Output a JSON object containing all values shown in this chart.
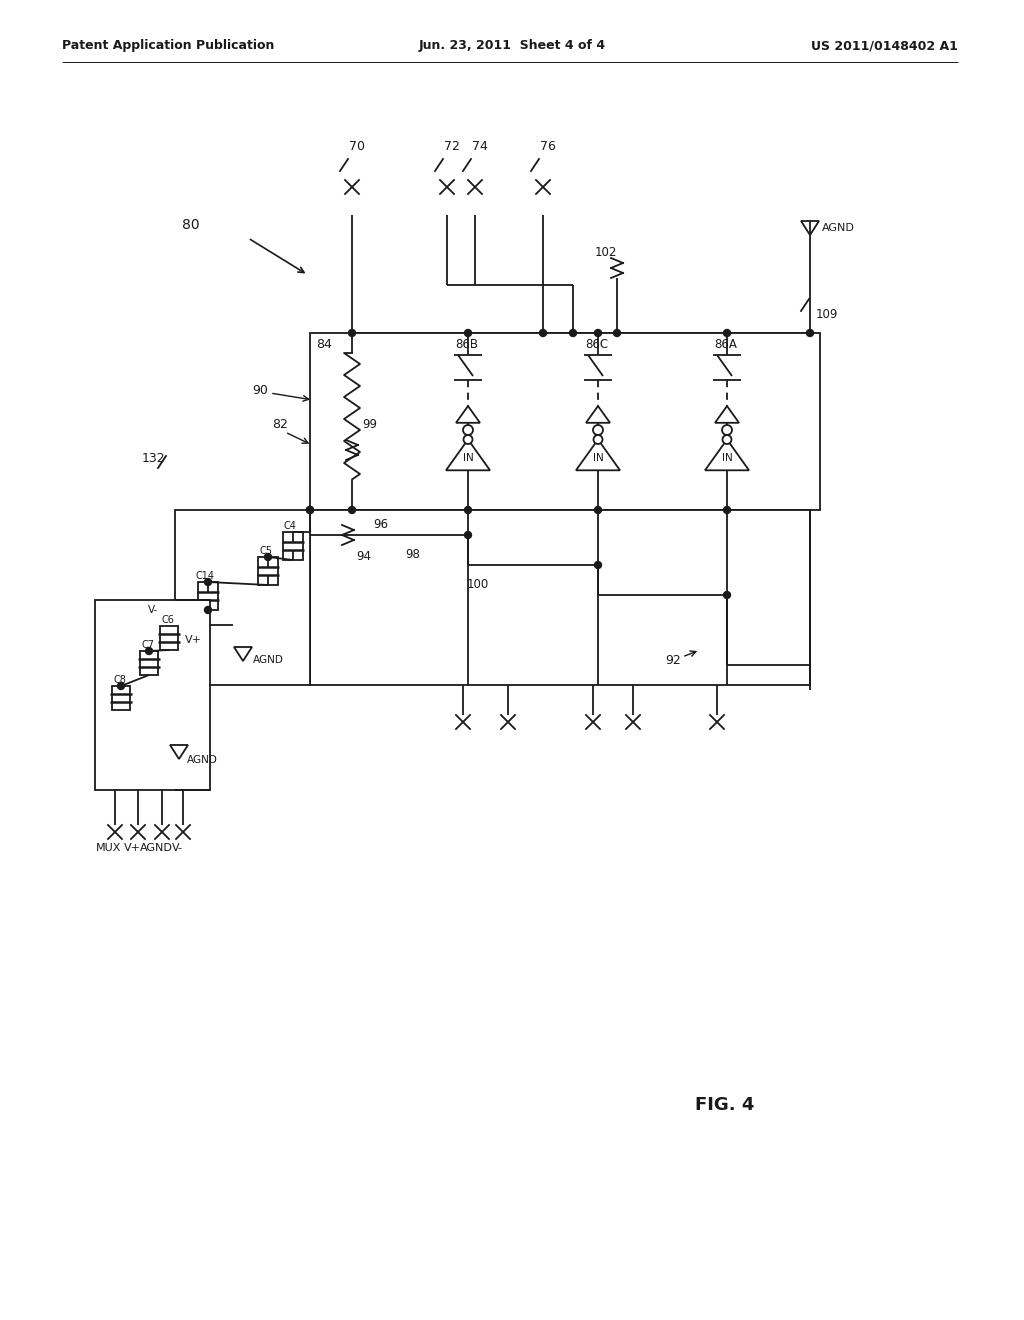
{
  "bg_color": "#ffffff",
  "line_color": "#1a1a1a",
  "header_left": "Patent Application Publication",
  "header_center": "Jun. 23, 2011  Sheet 4 of 4",
  "header_right": "US 2011/0148402 A1",
  "fig_label": "FIG. 4",
  "conn_labels": [
    "70",
    "72",
    "74",
    "76"
  ],
  "switch_labels": [
    "86B",
    "86C",
    "86A"
  ],
  "cap_labels_box1": [
    "C4",
    "C5",
    "C14"
  ],
  "cap_labels_box2": [
    "C6",
    "C7",
    "C8"
  ],
  "bottom_labels": [
    "MUX",
    "V+",
    "AGND",
    "V-"
  ],
  "ref_labels": [
    "84",
    "86B",
    "86C",
    "86A",
    "80",
    "82",
    "90",
    "92",
    "94",
    "96",
    "98",
    "99",
    "100",
    "102",
    "109",
    "132"
  ]
}
